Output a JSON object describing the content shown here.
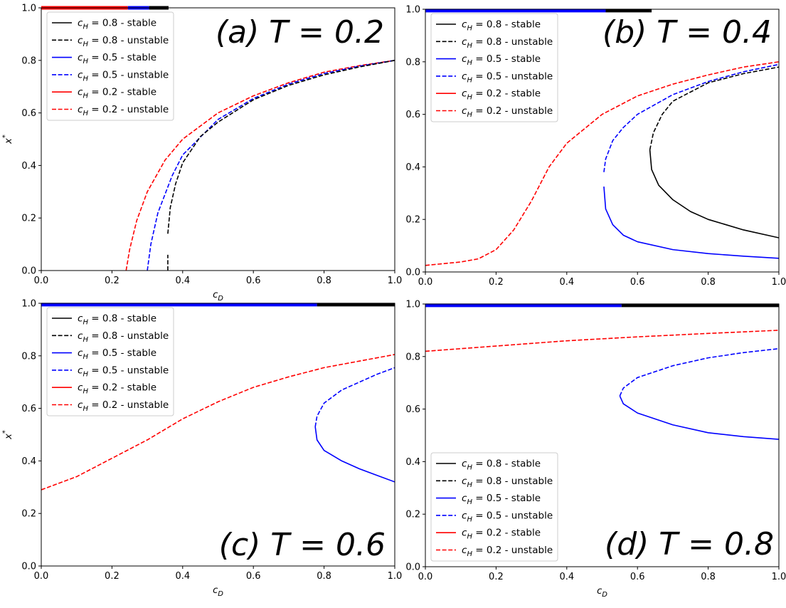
{
  "chart_data": [
    {
      "type": "line",
      "title": "(a) T = 0.2",
      "xlabel": "c_D",
      "ylabel": "x*",
      "xlim": [
        0,
        1
      ],
      "ylim": [
        0,
        1
      ],
      "xticks": [
        "0.0",
        "0.2",
        "0.4",
        "0.6",
        "0.8",
        "1.0"
      ],
      "yticks": [
        "0.0",
        "0.2",
        "0.4",
        "0.6",
        "0.8",
        "1.0"
      ],
      "grid": false,
      "legend_position": "upper-left",
      "legend": [
        {
          "label": "c_H = 0.8 - stable",
          "color": "#000000",
          "dash": false
        },
        {
          "label": "c_H = 0.8 - unstable",
          "color": "#000000",
          "dash": true
        },
        {
          "label": "c_H = 0.5 - stable",
          "color": "#0000ff",
          "dash": false
        },
        {
          "label": "c_H = 0.5 - unstable",
          "color": "#0000ff",
          "dash": true
        },
        {
          "label": "c_H = 0.2 - stable",
          "color": "#ff0000",
          "dash": false
        },
        {
          "label": "c_H = 0.2 - unstable",
          "color": "#ff0000",
          "dash": true
        }
      ],
      "series": [
        {
          "name": "c_H = 0.2 - stable",
          "color": "#ff0000",
          "dash": false,
          "points": [
            [
              0.0,
              1.0
            ],
            [
              0.245,
              1.0
            ]
          ]
        },
        {
          "name": "c_H = 0.5 - stable",
          "color": "#0000ff",
          "dash": false,
          "points": [
            [
              0.245,
              1.0
            ],
            [
              0.305,
              1.0
            ]
          ]
        },
        {
          "name": "c_H = 0.8 - stable",
          "color": "#000000",
          "dash": false,
          "points": [
            [
              0.305,
              1.0
            ],
            [
              0.36,
              1.0
            ]
          ]
        },
        {
          "name": "c_H = 0.2 - unstable",
          "color": "#ff0000",
          "dash": true,
          "points": [
            [
              0.24,
              0.0
            ],
            [
              0.25,
              0.08
            ],
            [
              0.27,
              0.19
            ],
            [
              0.3,
              0.3
            ],
            [
              0.35,
              0.42
            ],
            [
              0.4,
              0.5
            ],
            [
              0.5,
              0.6
            ],
            [
              0.6,
              0.665
            ],
            [
              0.7,
              0.715
            ],
            [
              0.8,
              0.755
            ],
            [
              0.9,
              0.78
            ],
            [
              1.0,
              0.8
            ]
          ]
        },
        {
          "name": "c_H = 0.5 - unstable",
          "color": "#0000ff",
          "dash": true,
          "points": [
            [
              0.3,
              0.0
            ],
            [
              0.31,
              0.1
            ],
            [
              0.33,
              0.22
            ],
            [
              0.37,
              0.36
            ],
            [
              0.4,
              0.44
            ],
            [
              0.5,
              0.575
            ],
            [
              0.6,
              0.655
            ],
            [
              0.7,
              0.71
            ],
            [
              0.8,
              0.75
            ],
            [
              0.9,
              0.778
            ],
            [
              1.0,
              0.8
            ]
          ]
        },
        {
          "name": "c_H = 0.8 - unstable",
          "color": "#000000",
          "dash": true,
          "points": [
            [
              0.358,
              0.0
            ],
            [
              0.358,
              0.06
            ]
          ]
        },
        {
          "name": "c_H = 0.8 - unstable",
          "color": "#000000",
          "dash": true,
          "points": [
            [
              0.358,
              0.14
            ],
            [
              0.365,
              0.24
            ],
            [
              0.38,
              0.33
            ],
            [
              0.4,
              0.41
            ],
            [
              0.45,
              0.51
            ],
            [
              0.5,
              0.565
            ],
            [
              0.6,
              0.65
            ],
            [
              0.7,
              0.705
            ],
            [
              0.8,
              0.745
            ],
            [
              0.9,
              0.775
            ],
            [
              1.0,
              0.8
            ]
          ]
        }
      ]
    },
    {
      "type": "line",
      "title": "(b) T = 0.4",
      "xlabel": "",
      "ylabel": "",
      "xlim": [
        0,
        1
      ],
      "ylim": [
        0,
        1
      ],
      "xticks": [
        "0.0",
        "0.2",
        "0.4",
        "0.6",
        "0.8",
        "1.0"
      ],
      "yticks": [
        "0.0",
        "0.2",
        "0.4",
        "0.6",
        "0.8",
        "1.0"
      ],
      "grid": false,
      "legend_position": "upper-left",
      "legend": [
        {
          "label": "c_H = 0.8 - stable",
          "color": "#000000",
          "dash": false
        },
        {
          "label": "c_H = 0.8 - unstable",
          "color": "#000000",
          "dash": true
        },
        {
          "label": "c_H = 0.5 - stable",
          "color": "#0000ff",
          "dash": false
        },
        {
          "label": "c_H = 0.5 - unstable",
          "color": "#0000ff",
          "dash": true
        },
        {
          "label": "c_H = 0.2 - stable",
          "color": "#ff0000",
          "dash": false
        },
        {
          "label": "c_H = 0.2 - unstable",
          "color": "#ff0000",
          "dash": true
        }
      ],
      "series": [
        {
          "name": "c_H = 0.5 - stable",
          "color": "#0000ff",
          "dash": false,
          "points": [
            [
              0.0,
              0.995
            ],
            [
              0.51,
              0.995
            ]
          ]
        },
        {
          "name": "c_H = 0.8 - stable",
          "color": "#000000",
          "dash": false,
          "points": [
            [
              0.51,
              0.995
            ],
            [
              0.64,
              0.995
            ]
          ]
        },
        {
          "name": "c_H = 0.2 - unstable",
          "color": "#ff0000",
          "dash": true,
          "points": [
            [
              0.0,
              0.025
            ],
            [
              0.1,
              0.038
            ],
            [
              0.15,
              0.05
            ],
            [
              0.2,
              0.085
            ],
            [
              0.25,
              0.16
            ],
            [
              0.3,
              0.27
            ],
            [
              0.35,
              0.4
            ],
            [
              0.4,
              0.49
            ],
            [
              0.5,
              0.6
            ],
            [
              0.6,
              0.67
            ],
            [
              0.7,
              0.715
            ],
            [
              0.8,
              0.75
            ],
            [
              0.9,
              0.78
            ],
            [
              1.0,
              0.8
            ]
          ]
        },
        {
          "name": "c_H = 0.5 - unstable",
          "color": "#0000ff",
          "dash": true,
          "points": [
            [
              0.505,
              0.38
            ],
            [
              0.51,
              0.43
            ],
            [
              0.53,
              0.5
            ],
            [
              0.56,
              0.55
            ],
            [
              0.6,
              0.6
            ],
            [
              0.7,
              0.675
            ],
            [
              0.8,
              0.725
            ],
            [
              0.9,
              0.762
            ],
            [
              1.0,
              0.79
            ]
          ]
        },
        {
          "name": "c_H = 0.5 - stable",
          "color": "#0000ff",
          "dash": false,
          "points": [
            [
              0.505,
              0.325
            ],
            [
              0.51,
              0.24
            ],
            [
              0.53,
              0.18
            ],
            [
              0.56,
              0.14
            ],
            [
              0.6,
              0.115
            ],
            [
              0.7,
              0.085
            ],
            [
              0.8,
              0.07
            ],
            [
              0.9,
              0.06
            ],
            [
              1.0,
              0.052
            ]
          ]
        },
        {
          "name": "c_H = 0.8 - unstable",
          "color": "#000000",
          "dash": true,
          "points": [
            [
              0.635,
              0.465
            ],
            [
              0.645,
              0.53
            ],
            [
              0.67,
              0.6
            ],
            [
              0.7,
              0.65
            ],
            [
              0.8,
              0.72
            ],
            [
              0.9,
              0.755
            ],
            [
              1.0,
              0.78
            ]
          ]
        },
        {
          "name": "c_H = 0.8 - stable",
          "color": "#000000",
          "dash": false,
          "points": [
            [
              0.635,
              0.465
            ],
            [
              0.64,
              0.39
            ],
            [
              0.66,
              0.33
            ],
            [
              0.7,
              0.275
            ],
            [
              0.75,
              0.23
            ],
            [
              0.8,
              0.2
            ],
            [
              0.9,
              0.16
            ],
            [
              1.0,
              0.13
            ]
          ]
        }
      ]
    },
    {
      "type": "line",
      "title": "(c) T = 0.6",
      "xlabel": "c_D",
      "ylabel": "x*",
      "xlim": [
        0,
        1
      ],
      "ylim": [
        0,
        1
      ],
      "xticks": [
        "0.0",
        "0.2",
        "0.4",
        "0.6",
        "0.8",
        "1.0"
      ],
      "yticks": [
        "0.0",
        "0.2",
        "0.4",
        "0.6",
        "0.8",
        "1.0"
      ],
      "grid": false,
      "legend_position": "upper-left",
      "legend": [
        {
          "label": "c_H = 0.8 - stable",
          "color": "#000000",
          "dash": false
        },
        {
          "label": "c_H = 0.8 - unstable",
          "color": "#000000",
          "dash": true
        },
        {
          "label": "c_H = 0.5 - stable",
          "color": "#0000ff",
          "dash": false
        },
        {
          "label": "c_H = 0.5 - unstable",
          "color": "#0000ff",
          "dash": true
        },
        {
          "label": "c_H = 0.2 - stable",
          "color": "#ff0000",
          "dash": false
        },
        {
          "label": "c_H = 0.2 - unstable",
          "color": "#ff0000",
          "dash": true
        }
      ],
      "series": [
        {
          "name": "c_H = 0.5 - stable",
          "color": "#0000ff",
          "dash": false,
          "points": [
            [
              0.0,
              0.995
            ],
            [
              0.78,
              0.995
            ]
          ]
        },
        {
          "name": "c_H = 0.8 - stable",
          "color": "#000000",
          "dash": false,
          "points": [
            [
              0.78,
              0.995
            ],
            [
              1.0,
              0.995
            ]
          ]
        },
        {
          "name": "c_H = 0.2 - unstable",
          "color": "#ff0000",
          "dash": true,
          "points": [
            [
              0.0,
              0.29
            ],
            [
              0.1,
              0.34
            ],
            [
              0.2,
              0.41
            ],
            [
              0.3,
              0.48
            ],
            [
              0.4,
              0.56
            ],
            [
              0.5,
              0.625
            ],
            [
              0.6,
              0.68
            ],
            [
              0.7,
              0.72
            ],
            [
              0.8,
              0.755
            ],
            [
              0.9,
              0.78
            ],
            [
              1.0,
              0.805
            ]
          ]
        },
        {
          "name": "c_H = 0.5 - unstable",
          "color": "#0000ff",
          "dash": true,
          "points": [
            [
              0.775,
              0.53
            ],
            [
              0.78,
              0.57
            ],
            [
              0.8,
              0.62
            ],
            [
              0.85,
              0.67
            ],
            [
              0.9,
              0.7
            ],
            [
              0.95,
              0.73
            ],
            [
              1.0,
              0.755
            ]
          ]
        },
        {
          "name": "c_H = 0.5 - stable",
          "color": "#0000ff",
          "dash": false,
          "points": [
            [
              0.775,
              0.53
            ],
            [
              0.78,
              0.48
            ],
            [
              0.8,
              0.44
            ],
            [
              0.85,
              0.4
            ],
            [
              0.9,
              0.37
            ],
            [
              0.95,
              0.345
            ],
            [
              1.0,
              0.32
            ]
          ]
        }
      ]
    },
    {
      "type": "line",
      "title": "(d) T = 0.8",
      "xlabel": "c_D",
      "ylabel": "",
      "xlim": [
        0,
        1
      ],
      "ylim": [
        0,
        1
      ],
      "xticks": [
        "0.0",
        "0.2",
        "0.4",
        "0.6",
        "0.8",
        "1.0"
      ],
      "yticks": [
        "0.0",
        "0.2",
        "0.4",
        "0.6",
        "0.8",
        "1.0"
      ],
      "grid": false,
      "legend_position": "lower-left",
      "legend": [
        {
          "label": "c_H = 0.8 - stable",
          "color": "#000000",
          "dash": false
        },
        {
          "label": "c_H = 0.8 - unstable",
          "color": "#000000",
          "dash": true
        },
        {
          "label": "c_H = 0.5 - stable",
          "color": "#0000ff",
          "dash": false
        },
        {
          "label": "c_H = 0.5 - unstable",
          "color": "#0000ff",
          "dash": true
        },
        {
          "label": "c_H = 0.2 - stable",
          "color": "#ff0000",
          "dash": false
        },
        {
          "label": "c_H = 0.2 - unstable",
          "color": "#ff0000",
          "dash": true
        }
      ],
      "series": [
        {
          "name": "c_H = 0.5 - stable",
          "color": "#0000ff",
          "dash": false,
          "points": [
            [
              0.0,
              0.995
            ],
            [
              0.555,
              0.995
            ]
          ]
        },
        {
          "name": "c_H = 0.8 - stable",
          "color": "#000000",
          "dash": false,
          "points": [
            [
              0.555,
              0.995
            ],
            [
              1.0,
              0.995
            ]
          ]
        },
        {
          "name": "c_H = 0.2 - unstable",
          "color": "#ff0000",
          "dash": true,
          "points": [
            [
              0.0,
              0.82
            ],
            [
              0.2,
              0.84
            ],
            [
              0.4,
              0.86
            ],
            [
              0.6,
              0.875
            ],
            [
              0.8,
              0.888
            ],
            [
              1.0,
              0.9
            ]
          ]
        },
        {
          "name": "c_H = 0.5 - unstable",
          "color": "#0000ff",
          "dash": true,
          "points": [
            [
              0.55,
              0.65
            ],
            [
              0.56,
              0.68
            ],
            [
              0.6,
              0.72
            ],
            [
              0.7,
              0.765
            ],
            [
              0.8,
              0.795
            ],
            [
              0.9,
              0.815
            ],
            [
              1.0,
              0.83
            ]
          ]
        },
        {
          "name": "c_H = 0.5 - stable",
          "color": "#0000ff",
          "dash": false,
          "points": [
            [
              0.55,
              0.65
            ],
            [
              0.56,
              0.62
            ],
            [
              0.6,
              0.585
            ],
            [
              0.7,
              0.54
            ],
            [
              0.8,
              0.51
            ],
            [
              0.9,
              0.495
            ],
            [
              1.0,
              0.485
            ]
          ]
        }
      ]
    }
  ]
}
